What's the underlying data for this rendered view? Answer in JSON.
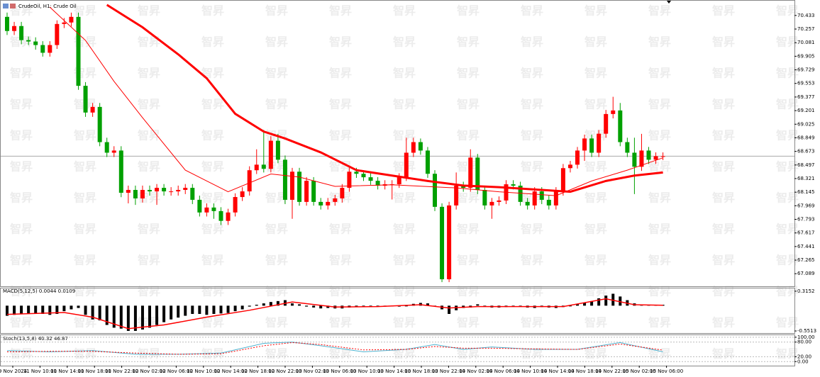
{
  "watermark": "智昇",
  "chart_data": [
    {
      "type": "candlestick",
      "title": "CrudeOil, H1:  Crude Oil",
      "up_color": "#ff0000",
      "down_color": "#00a000",
      "ylim": [
        66.926,
        70.615
      ],
      "yticks": [
        70.433,
        70.257,
        70.081,
        69.905,
        69.729,
        69.553,
        69.377,
        69.201,
        69.025,
        68.849,
        68.673,
        68.497,
        68.321,
        68.145,
        67.969,
        67.793,
        67.617,
        67.441,
        67.265,
        67.089
      ],
      "open": [
        70.415,
        70.232,
        70.296,
        70.114,
        70.096,
        70.05,
        69.95,
        70.05,
        70.323,
        70.342,
        70.415,
        69.522,
        69.176,
        69.249,
        68.793,
        68.656,
        68.684,
        68.137,
        68.174,
        68.064,
        68.174,
        68.155,
        68.201,
        68.155,
        68.155,
        68.174,
        68.201,
        68.046,
        67.882,
        67.946,
        67.9,
        67.773,
        67.882,
        68.082,
        68.155,
        68.429,
        68.501,
        68.447,
        68.811,
        68.565,
        68.046,
        68.41,
        68.019,
        68.292,
        68.019,
        67.973,
        68.019,
        68.064,
        68.201,
        68.41,
        68.383,
        68.338,
        68.292,
        68.229,
        68.247,
        68.247,
        68.338,
        68.656,
        68.793,
        68.684,
        68.383,
        67.955,
        67.017,
        67.973,
        68.229,
        68.201,
        68.593,
        68.174,
        67.973,
        68.019,
        68.037,
        68.247,
        68.229,
        68.019,
        67.973,
        68.155,
        68.046,
        67.973,
        68.155,
        68.456,
        68.501,
        68.684,
        68.84,
        68.656,
        68.902,
        69.157,
        69.203,
        68.793,
        68.656,
        68.474,
        68.684,
        68.565,
        68.611
      ],
      "high": [
        70.47,
        70.35,
        70.35,
        70.16,
        70.15,
        70.1,
        70.1,
        70.37,
        70.4,
        70.47,
        70.47,
        69.57,
        69.3,
        69.3,
        68.85,
        68.74,
        68.74,
        68.23,
        68.23,
        68.23,
        68.23,
        68.25,
        68.25,
        68.21,
        68.23,
        68.25,
        68.25,
        68.1,
        68.0,
        68.0,
        67.95,
        67.93,
        68.13,
        68.21,
        68.48,
        68.7,
        68.95,
        68.87,
        68.9,
        68.62,
        68.46,
        68.46,
        68.34,
        68.34,
        68.07,
        68.07,
        68.11,
        68.25,
        68.46,
        68.46,
        68.43,
        68.39,
        68.34,
        68.3,
        68.3,
        68.39,
        68.85,
        68.85,
        68.84,
        68.73,
        68.43,
        68.0,
        68.02,
        68.4,
        68.28,
        68.7,
        68.64,
        68.22,
        68.07,
        68.09,
        68.3,
        68.3,
        68.28,
        68.07,
        68.21,
        68.21,
        68.1,
        68.21,
        68.51,
        68.55,
        68.73,
        68.89,
        68.89,
        68.95,
        69.21,
        69.38,
        69.3,
        68.85,
        68.85,
        68.9,
        68.73,
        68.66,
        68.66
      ],
      "low": [
        70.18,
        70.18,
        70.06,
        70.05,
        69.99,
        69.9,
        69.9,
        70.0,
        70.27,
        70.29,
        69.47,
        69.12,
        69.12,
        68.74,
        68.6,
        68.6,
        68.08,
        68.0,
        67.98,
        68.01,
        68.1,
        67.98,
        68.1,
        68.1,
        68.1,
        68.12,
        67.99,
        67.83,
        67.83,
        67.8,
        67.72,
        67.72,
        67.83,
        68.03,
        68.1,
        68.38,
        68.4,
        68.4,
        68.52,
        67.99,
        67.8,
        67.97,
        67.97,
        67.97,
        67.92,
        67.92,
        67.97,
        68.01,
        68.15,
        68.33,
        68.29,
        68.24,
        68.18,
        68.18,
        68.05,
        68.2,
        68.29,
        68.6,
        68.63,
        68.33,
        67.9,
        66.98,
        66.98,
        67.92,
        68.15,
        68.15,
        68.12,
        67.92,
        67.8,
        67.97,
        67.99,
        68.18,
        67.97,
        67.92,
        67.92,
        67.99,
        67.92,
        67.92,
        68.1,
        68.4,
        68.45,
        68.55,
        68.6,
        68.6,
        68.85,
        69.1,
        68.74,
        68.6,
        68.12,
        68.42,
        68.51,
        68.51,
        68.56
      ],
      "close": [
        70.232,
        70.296,
        70.114,
        70.096,
        70.05,
        69.95,
        70.05,
        70.323,
        70.342,
        70.415,
        69.522,
        69.176,
        69.249,
        68.793,
        68.656,
        68.684,
        68.137,
        68.174,
        68.064,
        68.174,
        68.155,
        68.201,
        68.155,
        68.155,
        68.174,
        68.201,
        68.046,
        67.882,
        67.946,
        67.9,
        67.773,
        67.882,
        68.082,
        68.155,
        68.429,
        68.501,
        68.447,
        68.811,
        68.565,
        68.046,
        68.41,
        68.019,
        68.292,
        68.019,
        67.973,
        68.019,
        68.064,
        68.201,
        68.41,
        68.383,
        68.338,
        68.292,
        68.229,
        68.247,
        68.247,
        68.338,
        68.656,
        68.793,
        68.684,
        68.383,
        67.955,
        67.017,
        67.973,
        68.229,
        68.201,
        68.593,
        68.174,
        67.973,
        68.019,
        68.037,
        68.247,
        68.229,
        68.019,
        67.973,
        68.155,
        68.046,
        67.973,
        68.155,
        68.456,
        68.501,
        68.684,
        68.84,
        68.656,
        68.902,
        69.157,
        69.203,
        68.793,
        68.656,
        68.474,
        68.684,
        68.565,
        68.611,
        68.611
      ],
      "series": [
        {
          "color": "#ff0000",
          "width": 3,
          "x": [
            14,
            19,
            24,
            28,
            32,
            36,
            39,
            44,
            49,
            54,
            59,
            64,
            69,
            74,
            79,
            84,
            88,
            92
          ],
          "values": [
            70.57,
            70.28,
            69.93,
            69.62,
            69.16,
            68.93,
            68.84,
            68.66,
            68.43,
            68.36,
            68.29,
            68.23,
            68.21,
            68.18,
            68.15,
            68.29,
            68.36,
            68.4
          ]
        },
        {
          "color": "#ff0000",
          "width": 1,
          "x": [
            6,
            11,
            15,
            19,
            25,
            31,
            37,
            41,
            46,
            54,
            63,
            69,
            77,
            82,
            87,
            92
          ],
          "values": [
            70.54,
            70.11,
            69.58,
            69.11,
            68.43,
            68.15,
            68.38,
            68.34,
            68.22,
            68.24,
            68.2,
            68.15,
            68.1,
            68.29,
            68.43,
            68.59
          ]
        }
      ],
      "time_labels": [
        "9 Nov 2024",
        "11 Nov 10:00",
        "11 Nov 14:00",
        "11 Nov 18:00",
        "11 Nov 22:00",
        "12 Nov 02:00",
        "12 Nov 06:00",
        "12 Nov 10:00",
        "12 Nov 14:00",
        "12 Nov 18:00",
        "12 Nov 22:00",
        "13 Nov 02:00",
        "13 Nov 06:00",
        "13 Nov 10:00",
        "13 Nov 14:00",
        "13 Nov 18:00",
        "13 Nov 22:00",
        "14 Nov 02:00",
        "14 Nov 06:00",
        "14 Nov 10:00",
        "14 Nov 14:00",
        "14 Nov 18:00",
        "14 Nov 22:00",
        "15 Nov 02:00",
        "15 Nov 06:00"
      ]
    },
    {
      "type": "macd",
      "title": "MACD(5,12,5) 0.0044 0.0109",
      "bar_color": "#000000",
      "ylim": [
        -0.597,
        0.376
      ],
      "yticks": [
        0.3152,
        -0.5513
      ],
      "values": [
        -0.22,
        -0.2,
        -0.18,
        -0.17,
        -0.17,
        -0.18,
        -0.2,
        -0.18,
        -0.12,
        -0.08,
        -0.05,
        -0.2,
        -0.3,
        -0.32,
        -0.42,
        -0.48,
        -0.5,
        -0.55,
        -0.55,
        -0.52,
        -0.48,
        -0.42,
        -0.36,
        -0.3,
        -0.26,
        -0.22,
        -0.18,
        -0.18,
        -0.2,
        -0.18,
        -0.17,
        -0.16,
        -0.12,
        -0.08,
        -0.02,
        0.02,
        0.05,
        0.08,
        0.1,
        0.12,
        0.05,
        0.03,
        -0.02,
        -0.04,
        -0.06,
        -0.05,
        -0.06,
        -0.06,
        -0.04,
        -0.02,
        -0.01,
        -0.01,
        -0.02,
        -0.02,
        -0.01,
        -0.02,
        -0.01,
        0.04,
        0.06,
        0.05,
        0.0,
        -0.08,
        -0.18,
        -0.1,
        -0.05,
        -0.04,
        0.03,
        0.0,
        -0.04,
        -0.04,
        -0.03,
        0.0,
        -0.01,
        -0.04,
        -0.05,
        -0.03,
        -0.04,
        -0.05,
        -0.03,
        0.0,
        0.03,
        0.06,
        0.1,
        0.16,
        0.22,
        0.26,
        0.2,
        0.12,
        0.05,
        0.02,
        0.02,
        0.02,
        0.02
      ],
      "series": [
        {
          "color": "#ff0000",
          "width": 1.5,
          "x": [
            0,
            8,
            12,
            17,
            22,
            28,
            34,
            40,
            46,
            52,
            58,
            62,
            66,
            72,
            78,
            84,
            88,
            92
          ],
          "values": [
            -0.19,
            -0.15,
            -0.25,
            -0.5,
            -0.42,
            -0.25,
            -0.1,
            0.08,
            -0.03,
            -0.02,
            0.02,
            -0.05,
            -0.02,
            -0.02,
            -0.02,
            0.15,
            0.02,
            0.01
          ]
        }
      ]
    },
    {
      "type": "stochastic",
      "title": "Stoch(13,5,8) 40.32 46.87",
      "ylim": [
        -16.7,
        108.3
      ],
      "yticks": [
        {
          "value": 100,
          "label": "100.00"
        },
        {
          "value": 80,
          "label": "80.00"
        },
        {
          "value": 20,
          "label": "20.00"
        },
        {
          "value": 0,
          "label": "0.00"
        }
      ],
      "series": [
        {
          "color": "#4fb3d0",
          "width": 1,
          "x": [
            0,
            6,
            12,
            18,
            24,
            30,
            36,
            40,
            44,
            50,
            56,
            60,
            64,
            68,
            74,
            80,
            86,
            92
          ],
          "values": [
            45,
            40,
            45,
            30,
            30,
            35,
            75,
            80,
            65,
            40,
            50,
            70,
            50,
            60,
            50,
            50,
            78,
            40
          ]
        },
        {
          "color": "#ff0000",
          "width": 1,
          "dash": "2,2",
          "x": [
            0,
            6,
            12,
            18,
            24,
            30,
            36,
            40,
            44,
            50,
            56,
            60,
            64,
            68,
            74,
            80,
            86,
            92
          ],
          "values": [
            40,
            42,
            42,
            35,
            30,
            32,
            65,
            78,
            70,
            48,
            50,
            62,
            55,
            55,
            52,
            50,
            72,
            47
          ]
        }
      ]
    }
  ]
}
